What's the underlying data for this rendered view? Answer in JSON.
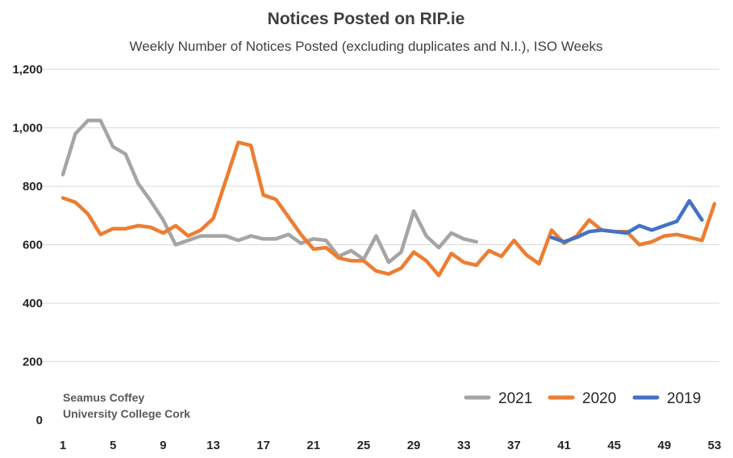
{
  "chart_data": {
    "type": "line",
    "title": "Notices Posted on RIP.ie",
    "subtitle": "Weekly Number of Notices Posted (excluding duplicates and N.I.), ISO Weeks",
    "xlabel": "",
    "ylabel": "",
    "xlim": [
      1,
      53
    ],
    "ylim": [
      0,
      1200
    ],
    "x_ticks": [
      1,
      5,
      9,
      13,
      17,
      21,
      25,
      29,
      33,
      37,
      41,
      45,
      49,
      53
    ],
    "x_tick_labels": [
      "1",
      "5",
      "9",
      "13",
      "17",
      "21",
      "25",
      "29",
      "33",
      "37",
      "41",
      "45",
      "49",
      "53"
    ],
    "y_ticks": [
      0,
      200,
      400,
      600,
      800,
      1000,
      1200
    ],
    "y_tick_labels": [
      "0",
      "200",
      "400",
      "600",
      "800",
      "1,000",
      "1,200"
    ],
    "grid": true,
    "legend_position": "bottom-right",
    "series": [
      {
        "name": "2021",
        "color": "#A5A5A5",
        "x": [
          1,
          2,
          3,
          4,
          5,
          6,
          7,
          8,
          9,
          10,
          11,
          12,
          13,
          14,
          15,
          16,
          17,
          18,
          19,
          20,
          21,
          22,
          23,
          24,
          25,
          26,
          27,
          28,
          29,
          30,
          31,
          32,
          33,
          34
        ],
        "values": [
          840,
          980,
          1025,
          1025,
          935,
          910,
          810,
          750,
          685,
          600,
          615,
          630,
          630,
          630,
          615,
          630,
          620,
          620,
          635,
          605,
          620,
          615,
          560,
          580,
          550,
          630,
          540,
          575,
          715,
          630,
          590,
          640,
          620,
          610
        ]
      },
      {
        "name": "2020",
        "color": "#ED7D31",
        "x": [
          1,
          2,
          3,
          4,
          5,
          6,
          7,
          8,
          9,
          10,
          11,
          12,
          13,
          14,
          15,
          16,
          17,
          18,
          19,
          20,
          21,
          22,
          23,
          24,
          25,
          26,
          27,
          28,
          29,
          30,
          31,
          32,
          33,
          34,
          35,
          36,
          37,
          38,
          39,
          40,
          41,
          42,
          43,
          44,
          45,
          46,
          47,
          48,
          49,
          50,
          51,
          52,
          53
        ],
        "values": [
          760,
          745,
          705,
          635,
          655,
          655,
          665,
          660,
          640,
          665,
          630,
          650,
          690,
          820,
          950,
          940,
          770,
          755,
          695,
          635,
          585,
          590,
          555,
          545,
          545,
          510,
          500,
          520,
          575,
          545,
          495,
          570,
          540,
          530,
          580,
          560,
          615,
          565,
          535,
          650,
          605,
          630,
          685,
          650,
          645,
          645,
          600,
          610,
          630,
          635,
          625,
          615,
          740
        ]
      },
      {
        "name": "2019",
        "color": "#4472C4",
        "x": [
          40,
          41,
          42,
          43,
          44,
          45,
          46,
          47,
          48,
          49,
          50,
          51,
          52
        ],
        "values": [
          625,
          610,
          625,
          645,
          650,
          645,
          640,
          665,
          650,
          665,
          680,
          750,
          685
        ]
      }
    ],
    "annotations": [
      "Seamus Coffey",
      "University College Cork"
    ]
  }
}
